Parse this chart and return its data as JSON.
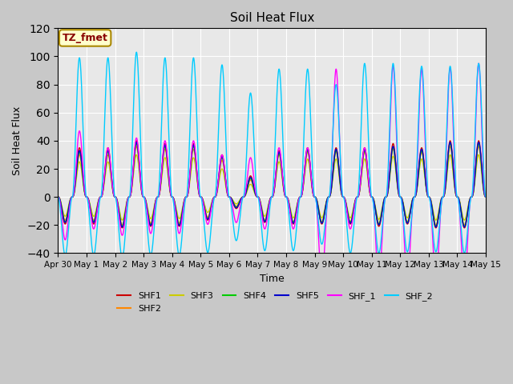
{
  "title": "Soil Heat Flux",
  "xlabel": "Time",
  "ylabel": "Soil Heat Flux",
  "ylim": [
    -40,
    120
  ],
  "yticks": [
    -40,
    -20,
    0,
    20,
    40,
    60,
    80,
    100,
    120
  ],
  "fig_bg": "#c8c8c8",
  "plot_bg": "#e8e8e8",
  "series_colors": {
    "SHF1": "#cc0000",
    "SHF2": "#ff8800",
    "SHF3": "#cccc00",
    "SHF4": "#00cc00",
    "SHF5": "#0000cc",
    "SHF_1": "#ff00ff",
    "SHF_2": "#00ccff"
  },
  "annotation_text": "TZ_fmet",
  "annotation_bg": "#ffffcc",
  "annotation_border": "#aa8800",
  "annotation_text_color": "#880000",
  "num_days": 15,
  "points_per_day": 288
}
